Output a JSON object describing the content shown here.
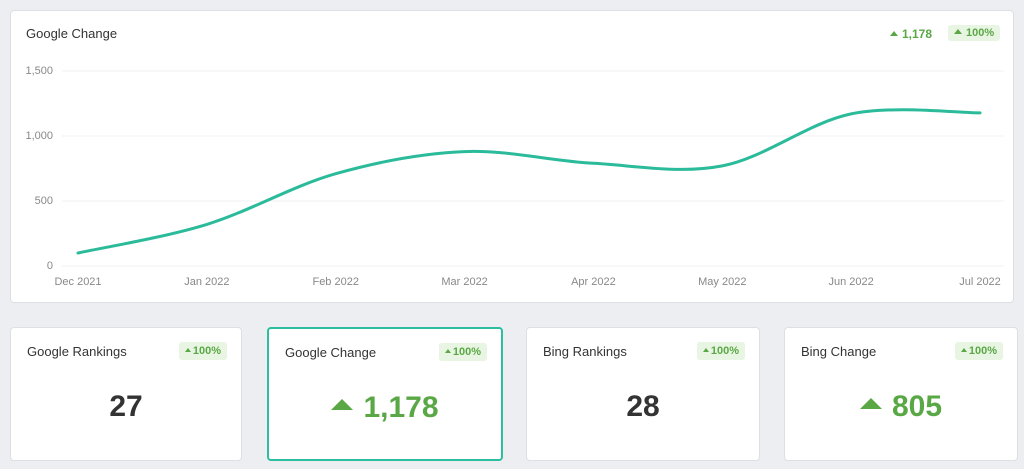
{
  "chart_data": {
    "type": "line",
    "title": "Google Change",
    "categories": [
      "Dec 2021",
      "Jan 2022",
      "Feb 2022",
      "Mar 2022",
      "Apr 2022",
      "May 2022",
      "Jun 2022",
      "Jul 2022"
    ],
    "values": [
      100,
      320,
      710,
      880,
      790,
      770,
      1170,
      1178
    ],
    "color": "#2bbb9a",
    "ylim": [
      0,
      1500
    ],
    "yticks": [
      0,
      500,
      {
        "value": 1000,
        "label": "1,000"
      },
      {
        "value": 1500,
        "label": "1,500"
      }
    ],
    "grid": true
  },
  "header_badges": [
    "1,178",
    "100%"
  ],
  "cards": [
    {
      "title": "Google Rankings",
      "badge": "100%",
      "value": "27"
    },
    {
      "title": "Google Change",
      "badge": "100%",
      "value": "1,178"
    },
    {
      "title": "Bing Rankings",
      "badge": "100%",
      "value": "28"
    },
    {
      "title": "Bing Change",
      "badge": "100%",
      "value": "805"
    }
  ]
}
